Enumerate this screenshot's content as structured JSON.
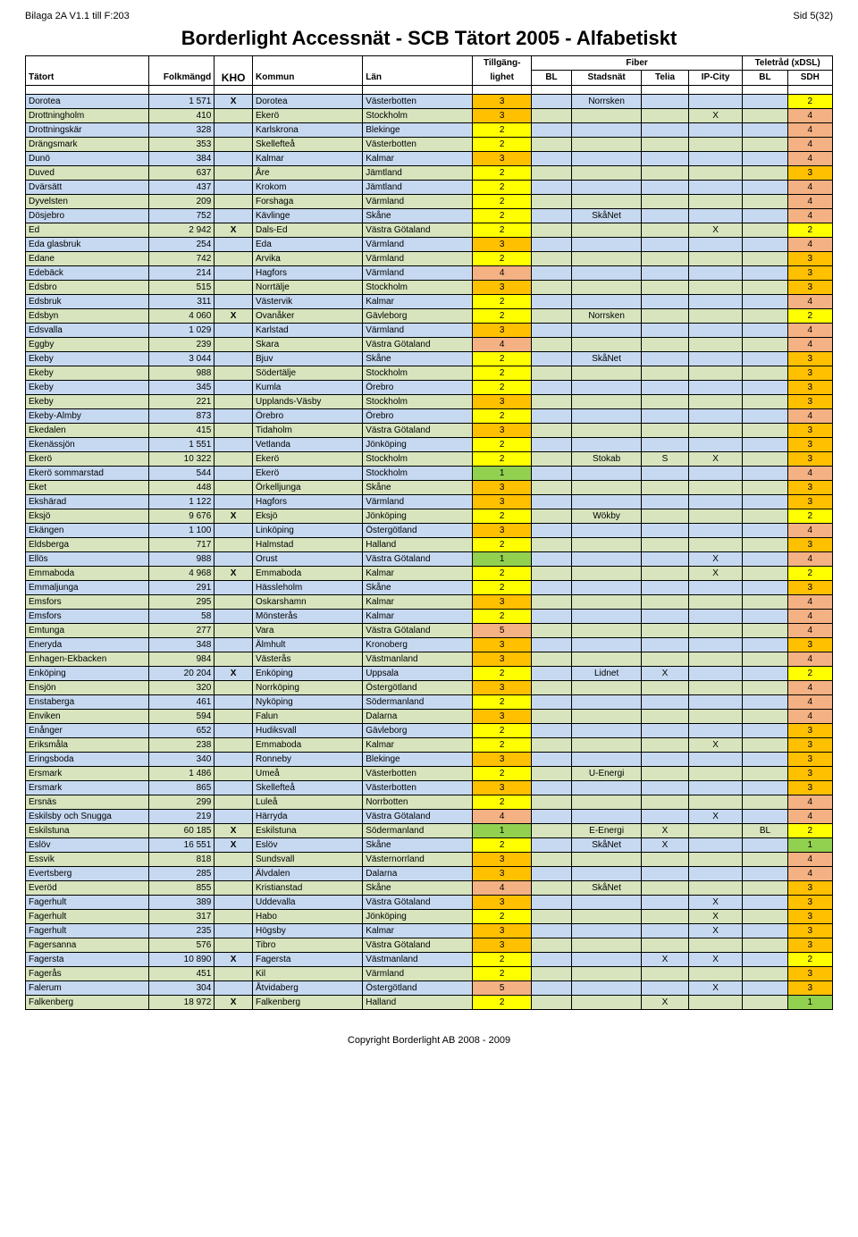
{
  "page": {
    "top_left": "Bilaga 2A V1.1 till F:203",
    "top_right": "Sid 5(32)",
    "title": "Borderlight Accessnät - SCB Tätort 2005 - Alfabetiskt",
    "footer": "Copyright Borderlight AB 2008 - 2009"
  },
  "colors": {
    "band_blue": "#c6d9f1",
    "band_green": "#d7e4bd",
    "till_yellow": "#ffff00",
    "till_orange": "#ffc000",
    "till_pink": "#f4b183",
    "till_green": "#92d050",
    "border": "#000000",
    "header_bg": "#ffffff"
  },
  "header": {
    "group_tillgang": "Tillgäng-",
    "group_fiber": "Fiber",
    "group_teletrad": "Teletråd (xDSL)",
    "tatort": "Tätort",
    "folk": "Folkmängd",
    "kho": "KHO",
    "kommun": "Kommun",
    "lan": "Län",
    "lighet": "lighet",
    "bl": "BL",
    "stadsnat": "Stadsnät",
    "telia": "Telia",
    "ipcity": "IP-City",
    "bl2": "BL",
    "sdh": "SDH"
  },
  "rows": [
    {
      "t": "Dorotea",
      "f": "1 571",
      "kho": "X",
      "k": "Dorotea",
      "l": "Västerbotten",
      "ti": 3,
      "bl": "",
      "st": "Norrsken",
      "te": "",
      "ip": "",
      "bl2": "",
      "sd": 2
    },
    {
      "t": "Drottningholm",
      "f": "410",
      "kho": "",
      "k": "Ekerö",
      "l": "Stockholm",
      "ti": 3,
      "bl": "",
      "st": "",
      "te": "",
      "ip": "X",
      "bl2": "",
      "sd": 4
    },
    {
      "t": "Drottningskär",
      "f": "328",
      "kho": "",
      "k": "Karlskrona",
      "l": "Blekinge",
      "ti": 2,
      "bl": "",
      "st": "",
      "te": "",
      "ip": "",
      "bl2": "",
      "sd": 4
    },
    {
      "t": "Drängsmark",
      "f": "353",
      "kho": "",
      "k": "Skellefteå",
      "l": "Västerbotten",
      "ti": 2,
      "bl": "",
      "st": "",
      "te": "",
      "ip": "",
      "bl2": "",
      "sd": 4
    },
    {
      "t": "Dunö",
      "f": "384",
      "kho": "",
      "k": "Kalmar",
      "l": "Kalmar",
      "ti": 3,
      "bl": "",
      "st": "",
      "te": "",
      "ip": "",
      "bl2": "",
      "sd": 4
    },
    {
      "t": "Duved",
      "f": "637",
      "kho": "",
      "k": "Åre",
      "l": "Jämtland",
      "ti": 2,
      "bl": "",
      "st": "",
      "te": "",
      "ip": "",
      "bl2": "",
      "sd": 3
    },
    {
      "t": "Dvärsätt",
      "f": "437",
      "kho": "",
      "k": "Krokom",
      "l": "Jämtland",
      "ti": 2,
      "bl": "",
      "st": "",
      "te": "",
      "ip": "",
      "bl2": "",
      "sd": 4
    },
    {
      "t": "Dyvelsten",
      "f": "209",
      "kho": "",
      "k": "Forshaga",
      "l": "Värmland",
      "ti": 2,
      "bl": "",
      "st": "",
      "te": "",
      "ip": "",
      "bl2": "",
      "sd": 4
    },
    {
      "t": "Dösjebro",
      "f": "752",
      "kho": "",
      "k": "Kävlinge",
      "l": "Skåne",
      "ti": 2,
      "bl": "",
      "st": "SkåNet",
      "te": "",
      "ip": "",
      "bl2": "",
      "sd": 4
    },
    {
      "t": "Ed",
      "f": "2 942",
      "kho": "X",
      "k": "Dals-Ed",
      "l": "Västra Götaland",
      "ti": 2,
      "bl": "",
      "st": "",
      "te": "",
      "ip": "X",
      "bl2": "",
      "sd": 2
    },
    {
      "t": "Eda glasbruk",
      "f": "254",
      "kho": "",
      "k": "Eda",
      "l": "Värmland",
      "ti": 3,
      "bl": "",
      "st": "",
      "te": "",
      "ip": "",
      "bl2": "",
      "sd": 4
    },
    {
      "t": "Edane",
      "f": "742",
      "kho": "",
      "k": "Arvika",
      "l": "Värmland",
      "ti": 2,
      "bl": "",
      "st": "",
      "te": "",
      "ip": "",
      "bl2": "",
      "sd": 3
    },
    {
      "t": "Edebäck",
      "f": "214",
      "kho": "",
      "k": "Hagfors",
      "l": "Värmland",
      "ti": 4,
      "bl": "",
      "st": "",
      "te": "",
      "ip": "",
      "bl2": "",
      "sd": 3
    },
    {
      "t": "Edsbro",
      "f": "515",
      "kho": "",
      "k": "Norrtälje",
      "l": "Stockholm",
      "ti": 3,
      "bl": "",
      "st": "",
      "te": "",
      "ip": "",
      "bl2": "",
      "sd": 3
    },
    {
      "t": "Edsbruk",
      "f": "311",
      "kho": "",
      "k": "Västervik",
      "l": "Kalmar",
      "ti": 2,
      "bl": "",
      "st": "",
      "te": "",
      "ip": "",
      "bl2": "",
      "sd": 4
    },
    {
      "t": "Edsbyn",
      "f": "4 060",
      "kho": "X",
      "k": "Ovanåker",
      "l": "Gävleborg",
      "ti": 2,
      "bl": "",
      "st": "Norrsken",
      "te": "",
      "ip": "",
      "bl2": "",
      "sd": 2
    },
    {
      "t": "Edsvalla",
      "f": "1 029",
      "kho": "",
      "k": "Karlstad",
      "l": "Värmland",
      "ti": 3,
      "bl": "",
      "st": "",
      "te": "",
      "ip": "",
      "bl2": "",
      "sd": 4
    },
    {
      "t": "Eggby",
      "f": "239",
      "kho": "",
      "k": "Skara",
      "l": "Västra Götaland",
      "ti": 4,
      "bl": "",
      "st": "",
      "te": "",
      "ip": "",
      "bl2": "",
      "sd": 4
    },
    {
      "t": "Ekeby",
      "f": "3 044",
      "kho": "",
      "k": "Bjuv",
      "l": "Skåne",
      "ti": 2,
      "bl": "",
      "st": "SkåNet",
      "te": "",
      "ip": "",
      "bl2": "",
      "sd": 3
    },
    {
      "t": "Ekeby",
      "f": "988",
      "kho": "",
      "k": "Södertälje",
      "l": "Stockholm",
      "ti": 2,
      "bl": "",
      "st": "",
      "te": "",
      "ip": "",
      "bl2": "",
      "sd": 3
    },
    {
      "t": "Ekeby",
      "f": "345",
      "kho": "",
      "k": "Kumla",
      "l": "Örebro",
      "ti": 2,
      "bl": "",
      "st": "",
      "te": "",
      "ip": "",
      "bl2": "",
      "sd": 3
    },
    {
      "t": "Ekeby",
      "f": "221",
      "kho": "",
      "k": "Upplands-Väsby",
      "l": "Stockholm",
      "ti": 3,
      "bl": "",
      "st": "",
      "te": "",
      "ip": "",
      "bl2": "",
      "sd": 3
    },
    {
      "t": "Ekeby-Almby",
      "f": "873",
      "kho": "",
      "k": "Örebro",
      "l": "Örebro",
      "ti": 2,
      "bl": "",
      "st": "",
      "te": "",
      "ip": "",
      "bl2": "",
      "sd": 4
    },
    {
      "t": "Ekedalen",
      "f": "415",
      "kho": "",
      "k": "Tidaholm",
      "l": "Västra Götaland",
      "ti": 3,
      "bl": "",
      "st": "",
      "te": "",
      "ip": "",
      "bl2": "",
      "sd": 3
    },
    {
      "t": "Ekenässjön",
      "f": "1 551",
      "kho": "",
      "k": "Vetlanda",
      "l": "Jönköping",
      "ti": 2,
      "bl": "",
      "st": "",
      "te": "",
      "ip": "",
      "bl2": "",
      "sd": 3
    },
    {
      "t": "Ekerö",
      "f": "10 322",
      "kho": "",
      "k": "Ekerö",
      "l": "Stockholm",
      "ti": 2,
      "bl": "",
      "st": "Stokab",
      "te": "S",
      "ip": "X",
      "bl2": "",
      "sd": 3
    },
    {
      "t": "Ekerö sommarstad",
      "f": "544",
      "kho": "",
      "k": "Ekerö",
      "l": "Stockholm",
      "ti": 1,
      "bl": "",
      "st": "",
      "te": "",
      "ip": "",
      "bl2": "",
      "sd": 4
    },
    {
      "t": "Eket",
      "f": "448",
      "kho": "",
      "k": "Örkelljunga",
      "l": "Skåne",
      "ti": 3,
      "bl": "",
      "st": "",
      "te": "",
      "ip": "",
      "bl2": "",
      "sd": 3
    },
    {
      "t": "Ekshärad",
      "f": "1 122",
      "kho": "",
      "k": "Hagfors",
      "l": "Värmland",
      "ti": 3,
      "bl": "",
      "st": "",
      "te": "",
      "ip": "",
      "bl2": "",
      "sd": 3
    },
    {
      "t": "Eksjö",
      "f": "9 676",
      "kho": "X",
      "k": "Eksjö",
      "l": "Jönköping",
      "ti": 2,
      "bl": "",
      "st": "Wökby",
      "te": "",
      "ip": "",
      "bl2": "",
      "sd": 2
    },
    {
      "t": "Ekängen",
      "f": "1 100",
      "kho": "",
      "k": "Linköping",
      "l": "Östergötland",
      "ti": 3,
      "bl": "",
      "st": "",
      "te": "",
      "ip": "",
      "bl2": "",
      "sd": 4
    },
    {
      "t": "Eldsberga",
      "f": "717",
      "kho": "",
      "k": "Halmstad",
      "l": "Halland",
      "ti": 2,
      "bl": "",
      "st": "",
      "te": "",
      "ip": "",
      "bl2": "",
      "sd": 3
    },
    {
      "t": "Ellös",
      "f": "988",
      "kho": "",
      "k": "Orust",
      "l": "Västra Götaland",
      "ti": 1,
      "bl": "",
      "st": "",
      "te": "",
      "ip": "X",
      "bl2": "",
      "sd": 4
    },
    {
      "t": "Emmaboda",
      "f": "4 968",
      "kho": "X",
      "k": "Emmaboda",
      "l": "Kalmar",
      "ti": 2,
      "bl": "",
      "st": "",
      "te": "",
      "ip": "X",
      "bl2": "",
      "sd": 2
    },
    {
      "t": "Emmaljunga",
      "f": "291",
      "kho": "",
      "k": "Hässleholm",
      "l": "Skåne",
      "ti": 2,
      "bl": "",
      "st": "",
      "te": "",
      "ip": "",
      "bl2": "",
      "sd": 3
    },
    {
      "t": "Emsfors",
      "f": "295",
      "kho": "",
      "k": "Oskarshamn",
      "l": "Kalmar",
      "ti": 3,
      "bl": "",
      "st": "",
      "te": "",
      "ip": "",
      "bl2": "",
      "sd": 4
    },
    {
      "t": "Emsfors",
      "f": "58",
      "kho": "",
      "k": "Mönsterås",
      "l": "Kalmar",
      "ti": 2,
      "bl": "",
      "st": "",
      "te": "",
      "ip": "",
      "bl2": "",
      "sd": 4
    },
    {
      "t": "Emtunga",
      "f": "277",
      "kho": "",
      "k": "Vara",
      "l": "Västra Götaland",
      "ti": 5,
      "bl": "",
      "st": "",
      "te": "",
      "ip": "",
      "bl2": "",
      "sd": 4
    },
    {
      "t": "Eneryda",
      "f": "348",
      "kho": "",
      "k": "Älmhult",
      "l": "Kronoberg",
      "ti": 3,
      "bl": "",
      "st": "",
      "te": "",
      "ip": "",
      "bl2": "",
      "sd": 3
    },
    {
      "t": "Enhagen-Ekbacken",
      "f": "984",
      "kho": "",
      "k": "Västerås",
      "l": "Västmanland",
      "ti": 3,
      "bl": "",
      "st": "",
      "te": "",
      "ip": "",
      "bl2": "",
      "sd": 4
    },
    {
      "t": "Enköping",
      "f": "20 204",
      "kho": "X",
      "k": "Enköping",
      "l": "Uppsala",
      "ti": 2,
      "bl": "",
      "st": "Lidnet",
      "te": "X",
      "ip": "",
      "bl2": "",
      "sd": 2
    },
    {
      "t": "Ensjön",
      "f": "320",
      "kho": "",
      "k": "Norrköping",
      "l": "Östergötland",
      "ti": 3,
      "bl": "",
      "st": "",
      "te": "",
      "ip": "",
      "bl2": "",
      "sd": 4
    },
    {
      "t": "Enstaberga",
      "f": "461",
      "kho": "",
      "k": "Nyköping",
      "l": "Södermanland",
      "ti": 2,
      "bl": "",
      "st": "",
      "te": "",
      "ip": "",
      "bl2": "",
      "sd": 4
    },
    {
      "t": "Enviken",
      "f": "594",
      "kho": "",
      "k": "Falun",
      "l": "Dalarna",
      "ti": 3,
      "bl": "",
      "st": "",
      "te": "",
      "ip": "",
      "bl2": "",
      "sd": 4
    },
    {
      "t": "Enånger",
      "f": "652",
      "kho": "",
      "k": "Hudiksvall",
      "l": "Gävleborg",
      "ti": 2,
      "bl": "",
      "st": "",
      "te": "",
      "ip": "",
      "bl2": "",
      "sd": 3
    },
    {
      "t": "Eriksmåla",
      "f": "238",
      "kho": "",
      "k": "Emmaboda",
      "l": "Kalmar",
      "ti": 2,
      "bl": "",
      "st": "",
      "te": "",
      "ip": "X",
      "bl2": "",
      "sd": 3
    },
    {
      "t": "Eringsboda",
      "f": "340",
      "kho": "",
      "k": "Ronneby",
      "l": "Blekinge",
      "ti": 3,
      "bl": "",
      "st": "",
      "te": "",
      "ip": "",
      "bl2": "",
      "sd": 3
    },
    {
      "t": "Ersmark",
      "f": "1 486",
      "kho": "",
      "k": "Umeå",
      "l": "Västerbotten",
      "ti": 2,
      "bl": "",
      "st": "U-Energi",
      "te": "",
      "ip": "",
      "bl2": "",
      "sd": 3
    },
    {
      "t": "Ersmark",
      "f": "865",
      "kho": "",
      "k": "Skellefteå",
      "l": "Västerbotten",
      "ti": 3,
      "bl": "",
      "st": "",
      "te": "",
      "ip": "",
      "bl2": "",
      "sd": 3
    },
    {
      "t": "Ersnäs",
      "f": "299",
      "kho": "",
      "k": "Luleå",
      "l": "Norrbotten",
      "ti": 2,
      "bl": "",
      "st": "",
      "te": "",
      "ip": "",
      "bl2": "",
      "sd": 4
    },
    {
      "t": "Eskilsby och Snugga",
      "f": "219",
      "kho": "",
      "k": "Härryda",
      "l": "Västra Götaland",
      "ti": 4,
      "bl": "",
      "st": "",
      "te": "",
      "ip": "X",
      "bl2": "",
      "sd": 4
    },
    {
      "t": "Eskilstuna",
      "f": "60 185",
      "kho": "X",
      "k": "Eskilstuna",
      "l": "Södermanland",
      "ti": 1,
      "bl": "",
      "st": "E-Energi",
      "te": "X",
      "ip": "",
      "bl2": "BL",
      "sd": 2
    },
    {
      "t": "Eslöv",
      "f": "16 551",
      "kho": "X",
      "k": "Eslöv",
      "l": "Skåne",
      "ti": 2,
      "bl": "",
      "st": "SkåNet",
      "te": "X",
      "ip": "",
      "bl2": "",
      "sd": 1
    },
    {
      "t": "Essvik",
      "f": "818",
      "kho": "",
      "k": "Sundsvall",
      "l": "Västernorrland",
      "ti": 3,
      "bl": "",
      "st": "",
      "te": "",
      "ip": "",
      "bl2": "",
      "sd": 4
    },
    {
      "t": "Evertsberg",
      "f": "285",
      "kho": "",
      "k": "Älvdalen",
      "l": "Dalarna",
      "ti": 3,
      "bl": "",
      "st": "",
      "te": "",
      "ip": "",
      "bl2": "",
      "sd": 4
    },
    {
      "t": "Everöd",
      "f": "855",
      "kho": "",
      "k": "Kristianstad",
      "l": "Skåne",
      "ti": 4,
      "bl": "",
      "st": "SkåNet",
      "te": "",
      "ip": "",
      "bl2": "",
      "sd": 3
    },
    {
      "t": "Fagerhult",
      "f": "389",
      "kho": "",
      "k": "Uddevalla",
      "l": "Västra Götaland",
      "ti": 3,
      "bl": "",
      "st": "",
      "te": "",
      "ip": "X",
      "bl2": "",
      "sd": 3
    },
    {
      "t": "Fagerhult",
      "f": "317",
      "kho": "",
      "k": "Habo",
      "l": "Jönköping",
      "ti": 2,
      "bl": "",
      "st": "",
      "te": "",
      "ip": "X",
      "bl2": "",
      "sd": 3
    },
    {
      "t": "Fagerhult",
      "f": "235",
      "kho": "",
      "k": "Högsby",
      "l": "Kalmar",
      "ti": 3,
      "bl": "",
      "st": "",
      "te": "",
      "ip": "X",
      "bl2": "",
      "sd": 3
    },
    {
      "t": "Fagersanna",
      "f": "576",
      "kho": "",
      "k": "Tibro",
      "l": "Västra Götaland",
      "ti": 3,
      "bl": "",
      "st": "",
      "te": "",
      "ip": "",
      "bl2": "",
      "sd": 3
    },
    {
      "t": "Fagersta",
      "f": "10 890",
      "kho": "X",
      "k": "Fagersta",
      "l": "Västmanland",
      "ti": 2,
      "bl": "",
      "st": "",
      "te": "X",
      "ip": "X",
      "bl2": "",
      "sd": 2
    },
    {
      "t": "Fagerås",
      "f": "451",
      "kho": "",
      "k": "Kil",
      "l": "Värmland",
      "ti": 2,
      "bl": "",
      "st": "",
      "te": "",
      "ip": "",
      "bl2": "",
      "sd": 3
    },
    {
      "t": "Falerum",
      "f": "304",
      "kho": "",
      "k": "Åtvidaberg",
      "l": "Östergötland",
      "ti": 5,
      "bl": "",
      "st": "",
      "te": "",
      "ip": "X",
      "bl2": "",
      "sd": 3
    },
    {
      "t": "Falkenberg",
      "f": "18 972",
      "kho": "X",
      "k": "Falkenberg",
      "l": "Halland",
      "ti": 2,
      "bl": "",
      "st": "",
      "te": "X",
      "ip": "",
      "bl2": "",
      "sd": 1
    }
  ]
}
